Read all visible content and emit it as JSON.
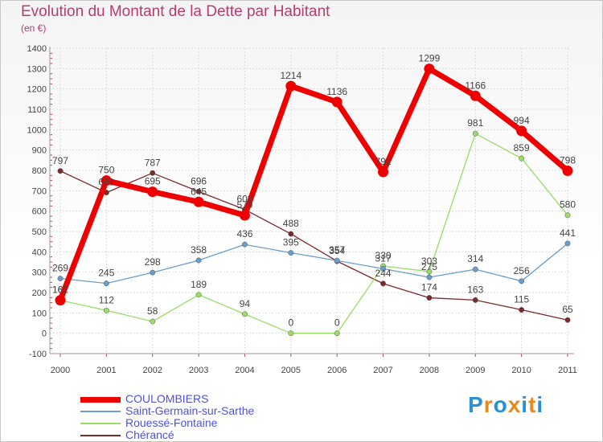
{
  "title": "Evolution du Montant de la Dette par Habitant",
  "subtitle": "(en €)",
  "logo_text": "Proxiti",
  "chart_data": {
    "type": "line",
    "x": [
      "2000",
      "2001",
      "2002",
      "2003",
      "2004",
      "2005",
      "2006",
      "2007",
      "2008",
      "2009",
      "2010",
      "2011"
    ],
    "ylim": [
      -100,
      1400
    ],
    "yticks": [
      "-100",
      "0",
      "100",
      "200",
      "300",
      "400",
      "500",
      "600",
      "700",
      "800",
      "900",
      "1000",
      "1100",
      "1200",
      "1300",
      "1400"
    ],
    "grid": true,
    "legend_position": "bottom-left",
    "series": [
      {
        "name": "COULOMBIERS",
        "color": "#ee0000",
        "values": [
          162,
          750,
          695,
          645,
          579,
          1214,
          1136,
          792,
          1299,
          1166,
          994,
          798
        ],
        "labels": [
          "162",
          "750",
          "695",
          "645",
          "579",
          "1214",
          "1136",
          "792",
          "1299",
          "1166",
          "994",
          "798"
        ]
      },
      {
        "name": "Saint-Germain-sur-Sarthe",
        "color": "#6a9ec9",
        "values": [
          269,
          245,
          298,
          358,
          436,
          395,
          357,
          317,
          275,
          314,
          256,
          441
        ],
        "labels": [
          "269",
          "245",
          "298",
          "358",
          "436",
          "395",
          "357",
          "317",
          "275",
          "314",
          "256",
          "441"
        ]
      },
      {
        "name": "Rouessé-Fontaine",
        "color": "#99dd66",
        "values": [
          162,
          112,
          58,
          189,
          94,
          0,
          0,
          330,
          303,
          981,
          859,
          580
        ],
        "labels": [
          "162",
          "112",
          "58",
          "189",
          "94",
          "0",
          "0",
          "330",
          "303",
          "981",
          "859",
          "580"
        ]
      },
      {
        "name": "Chérancé",
        "color": "#7a2a2a",
        "values": [
          797,
          691,
          787,
          696,
          608,
          488,
          354,
          244,
          174,
          163,
          115,
          65
        ],
        "labels": [
          "797",
          "691",
          "787",
          "696",
          "608",
          "488",
          "354",
          "244",
          "174",
          "163",
          "115",
          "65"
        ]
      }
    ]
  }
}
